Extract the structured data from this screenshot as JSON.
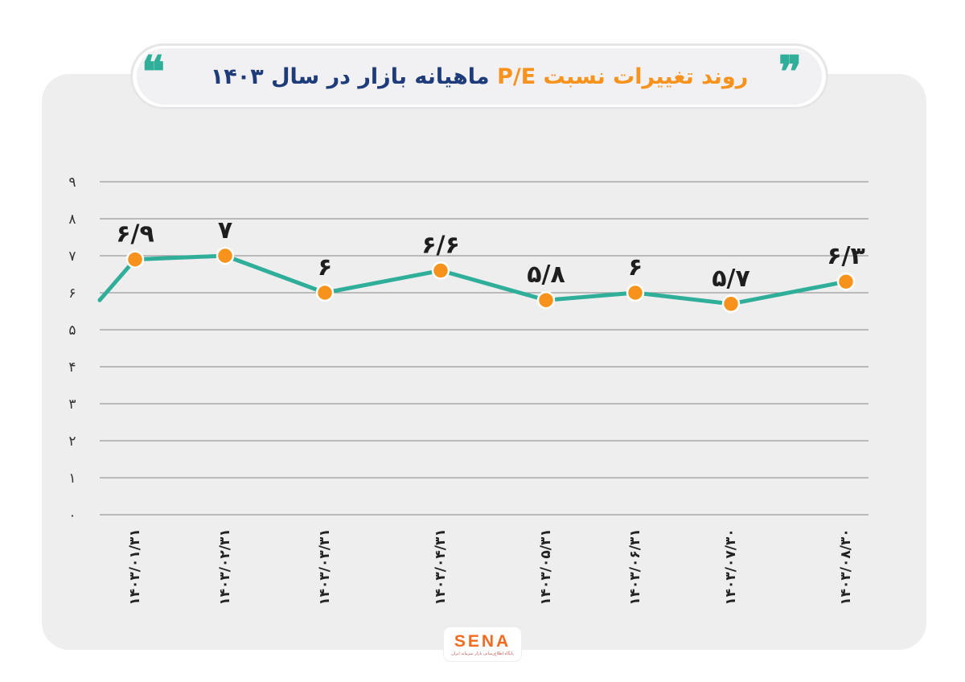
{
  "header": {
    "title_part1": "روند تغییرات نسبت ",
    "title_part2": "P/E",
    "title_part3": " ماهیانه بازار در سال ۱۴۰۳",
    "quote_open": "❞",
    "quote_close": "❝"
  },
  "colors": {
    "line": "#2fae99",
    "marker_fill": "#f7931d",
    "grid": "#9a9a9a",
    "accent_orange": "#f7931d",
    "accent_blue": "#1f3c7a"
  },
  "chart_data": {
    "type": "line",
    "title": "روند تغییرات نسبت P/E ماهیانه بازار در سال ۱۴۰۳",
    "ylim": [
      0,
      9
    ],
    "yticks": [
      0,
      1,
      2,
      3,
      4,
      5,
      6,
      7,
      8,
      9
    ],
    "ytick_labels": [
      "۰",
      "۱",
      "۲",
      "۳",
      "۴",
      "۵",
      "۶",
      "۷",
      "۸",
      "۹"
    ],
    "grid": true,
    "categories": [
      "۱۴۰۳/۰۱/۳۱",
      "۱۴۰۳/۰۲/۳۱",
      "۱۴۰۳/۰۳/۳۱",
      "۱۴۰۳/۰۴/۳۱",
      "۱۴۰۳/۰۵/۳۱",
      "۱۴۰۳/۰۶/۳۱",
      "۱۴۰۳/۰۷/۳۰",
      "۱۴۰۳/۰۸/۳۰"
    ],
    "values": [
      6.9,
      7,
      6,
      6.6,
      5.8,
      6,
      5.7,
      6.3
    ],
    "data_labels": [
      "۶/۹",
      "۷",
      "۶",
      "۶/۶",
      "۵/۸",
      "۶",
      "۵/۷",
      "۶/۳"
    ],
    "line_start_value": 5.8
  },
  "logo": {
    "text": "SENA",
    "subtitle": "پایگاه اطلاع‌رسانی بازار سرمایه ایران"
  }
}
